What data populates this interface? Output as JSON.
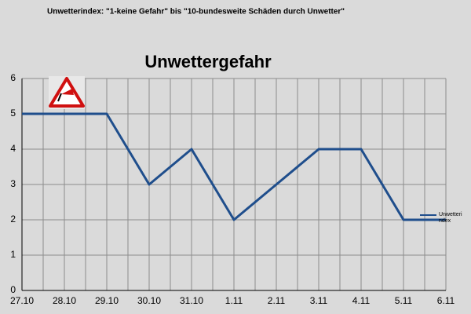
{
  "chart_data": {
    "type": "line",
    "subtitle": "Unwetterindex: \"1-keine Gefahr\" bis \"10-bundesweite Schäden durch Unwetter\"",
    "title": "Unwettergefahr",
    "categories": [
      "27.10",
      "28.10",
      "29.10",
      "30.10",
      "31.10",
      "1.11",
      "2.11",
      "3.11",
      "4.11",
      "5.11",
      "6.11"
    ],
    "series": [
      {
        "name": "Unwetterindex",
        "color": "#1f4e8c",
        "values": [
          5,
          5,
          5,
          3,
          4,
          2,
          3,
          4,
          4,
          2,
          2
        ]
      }
    ],
    "ylim": [
      0,
      6
    ],
    "yticks": [
      0,
      1,
      2,
      3,
      4,
      5,
      6
    ],
    "grid": true
  }
}
